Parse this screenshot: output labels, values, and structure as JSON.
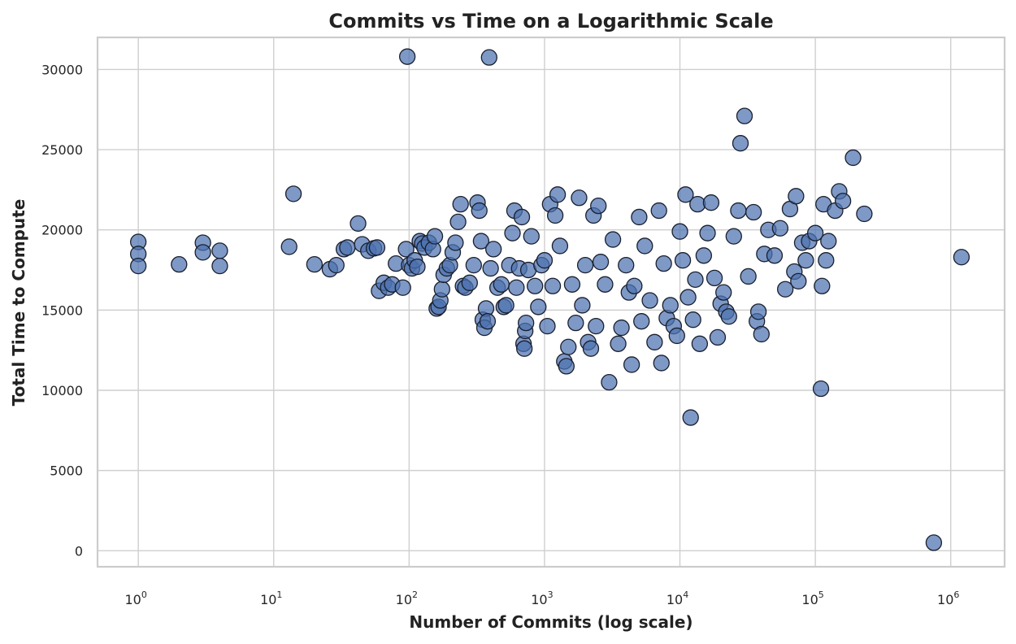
{
  "chart_data": {
    "type": "scatter",
    "title": "Commits vs Time on a Logarithmic Scale",
    "xlabel": "Number of Commits (log scale)",
    "ylabel": "Total Time to Compute",
    "x_scale": "log",
    "xlim": [
      0.5,
      2500000
    ],
    "ylim": [
      -1000,
      32000
    ],
    "x_ticks": [
      1,
      10,
      100,
      1000,
      10000,
      100000,
      1000000
    ],
    "x_tick_labels": [
      {
        "base": "10",
        "exp": "0"
      },
      {
        "base": "10",
        "exp": "1"
      },
      {
        "base": "10",
        "exp": "2"
      },
      {
        "base": "10",
        "exp": "3"
      },
      {
        "base": "10",
        "exp": "4"
      },
      {
        "base": "10",
        "exp": "5"
      },
      {
        "base": "10",
        "exp": "6"
      }
    ],
    "y_ticks": [
      0,
      5000,
      10000,
      15000,
      20000,
      25000,
      30000
    ],
    "y_tick_labels": [
      "0",
      "5000",
      "10000",
      "15000",
      "20000",
      "25000",
      "30000"
    ],
    "grid": true,
    "colors": {
      "marker_fill": "#4c72b0",
      "marker_edge": "#1a1f2e"
    },
    "points": [
      [
        1,
        19250
      ],
      [
        1,
        18500
      ],
      [
        1,
        17750
      ],
      [
        2,
        17850
      ],
      [
        3,
        19200
      ],
      [
        3,
        18600
      ],
      [
        4,
        18700
      ],
      [
        4,
        17750
      ],
      [
        13,
        18950
      ],
      [
        14,
        22250
      ],
      [
        20,
        17850
      ],
      [
        26,
        17550
      ],
      [
        29,
        17800
      ],
      [
        33,
        18800
      ],
      [
        35,
        18900
      ],
      [
        42,
        20400
      ],
      [
        45,
        19100
      ],
      [
        50,
        18700
      ],
      [
        55,
        18850
      ],
      [
        58,
        18900
      ],
      [
        60,
        16200
      ],
      [
        65,
        16700
      ],
      [
        70,
        16400
      ],
      [
        75,
        16600
      ],
      [
        80,
        17900
      ],
      [
        90,
        16400
      ],
      [
        95,
        18800
      ],
      [
        97,
        30800
      ],
      [
        100,
        17800
      ],
      [
        105,
        17600
      ],
      [
        110,
        18100
      ],
      [
        115,
        17700
      ],
      [
        120,
        19300
      ],
      [
        125,
        19150
      ],
      [
        130,
        18900
      ],
      [
        140,
        19200
      ],
      [
        150,
        18800
      ],
      [
        155,
        19600
      ],
      [
        160,
        15100
      ],
      [
        165,
        15200
      ],
      [
        170,
        15600
      ],
      [
        175,
        16300
      ],
      [
        180,
        17200
      ],
      [
        190,
        17600
      ],
      [
        200,
        17800
      ],
      [
        210,
        18600
      ],
      [
        220,
        19200
      ],
      [
        230,
        20500
      ],
      [
        240,
        21600
      ],
      [
        250,
        16500
      ],
      [
        260,
        16400
      ],
      [
        280,
        16700
      ],
      [
        300,
        17800
      ],
      [
        320,
        21700
      ],
      [
        330,
        21200
      ],
      [
        340,
        19300
      ],
      [
        350,
        14400
      ],
      [
        360,
        13900
      ],
      [
        370,
        15100
      ],
      [
        380,
        14300
      ],
      [
        390,
        30750
      ],
      [
        400,
        17600
      ],
      [
        420,
        18800
      ],
      [
        450,
        16400
      ],
      [
        480,
        16600
      ],
      [
        500,
        15200
      ],
      [
        520,
        15300
      ],
      [
        550,
        17800
      ],
      [
        580,
        19800
      ],
      [
        600,
        21200
      ],
      [
        620,
        16400
      ],
      [
        650,
        17600
      ],
      [
        680,
        20800
      ],
      [
        700,
        12900
      ],
      [
        710,
        12600
      ],
      [
        720,
        13700
      ],
      [
        730,
        14200
      ],
      [
        760,
        17500
      ],
      [
        800,
        19600
      ],
      [
        850,
        16500
      ],
      [
        900,
        15200
      ],
      [
        950,
        17800
      ],
      [
        1000,
        18100
      ],
      [
        1050,
        14000
      ],
      [
        1100,
        21600
      ],
      [
        1150,
        16500
      ],
      [
        1200,
        20900
      ],
      [
        1250,
        22200
      ],
      [
        1300,
        19000
      ],
      [
        1400,
        11800
      ],
      [
        1450,
        11500
      ],
      [
        1500,
        12700
      ],
      [
        1600,
        16600
      ],
      [
        1700,
        14200
      ],
      [
        1800,
        22000
      ],
      [
        1900,
        15300
      ],
      [
        2000,
        17800
      ],
      [
        2100,
        13000
      ],
      [
        2200,
        12600
      ],
      [
        2300,
        20900
      ],
      [
        2400,
        14000
      ],
      [
        2500,
        21500
      ],
      [
        2600,
        18000
      ],
      [
        2800,
        16600
      ],
      [
        3000,
        10500
      ],
      [
        3200,
        19400
      ],
      [
        3500,
        12900
      ],
      [
        3700,
        13900
      ],
      [
        4000,
        17800
      ],
      [
        4200,
        16100
      ],
      [
        4400,
        11600
      ],
      [
        4600,
        16500
      ],
      [
        5000,
        20800
      ],
      [
        5200,
        14300
      ],
      [
        5500,
        19000
      ],
      [
        6000,
        15600
      ],
      [
        6500,
        13000
      ],
      [
        7000,
        21200
      ],
      [
        7300,
        11700
      ],
      [
        7600,
        17900
      ],
      [
        8000,
        14500
      ],
      [
        8500,
        15300
      ],
      [
        9000,
        14000
      ],
      [
        9500,
        13400
      ],
      [
        10000,
        19900
      ],
      [
        10500,
        18100
      ],
      [
        11000,
        22200
      ],
      [
        11500,
        15800
      ],
      [
        12000,
        8300
      ],
      [
        12500,
        14400
      ],
      [
        13000,
        16900
      ],
      [
        13500,
        21600
      ],
      [
        14000,
        12900
      ],
      [
        15000,
        18400
      ],
      [
        16000,
        19800
      ],
      [
        17000,
        21700
      ],
      [
        18000,
        17000
      ],
      [
        19000,
        13300
      ],
      [
        20000,
        15400
      ],
      [
        21000,
        16100
      ],
      [
        22000,
        14900
      ],
      [
        23000,
        14600
      ],
      [
        25000,
        19600
      ],
      [
        27000,
        21200
      ],
      [
        28000,
        25400
      ],
      [
        30000,
        27100
      ],
      [
        32000,
        17100
      ],
      [
        35000,
        21100
      ],
      [
        37000,
        14300
      ],
      [
        38000,
        14900
      ],
      [
        40000,
        13500
      ],
      [
        42000,
        18500
      ],
      [
        45000,
        20000
      ],
      [
        50000,
        18400
      ],
      [
        55000,
        20100
      ],
      [
        60000,
        16300
      ],
      [
        65000,
        21300
      ],
      [
        70000,
        17400
      ],
      [
        72000,
        22100
      ],
      [
        75000,
        16800
      ],
      [
        80000,
        19200
      ],
      [
        85000,
        18100
      ],
      [
        90000,
        19300
      ],
      [
        100000,
        19800
      ],
      [
        110000,
        10100
      ],
      [
        112000,
        16500
      ],
      [
        115000,
        21600
      ],
      [
        120000,
        18100
      ],
      [
        125000,
        19300
      ],
      [
        140000,
        21200
      ],
      [
        150000,
        22400
      ],
      [
        160000,
        21800
      ],
      [
        190000,
        24500
      ],
      [
        230000,
        21000
      ],
      [
        750000,
        500
      ],
      [
        1200000,
        18300
      ]
    ]
  }
}
